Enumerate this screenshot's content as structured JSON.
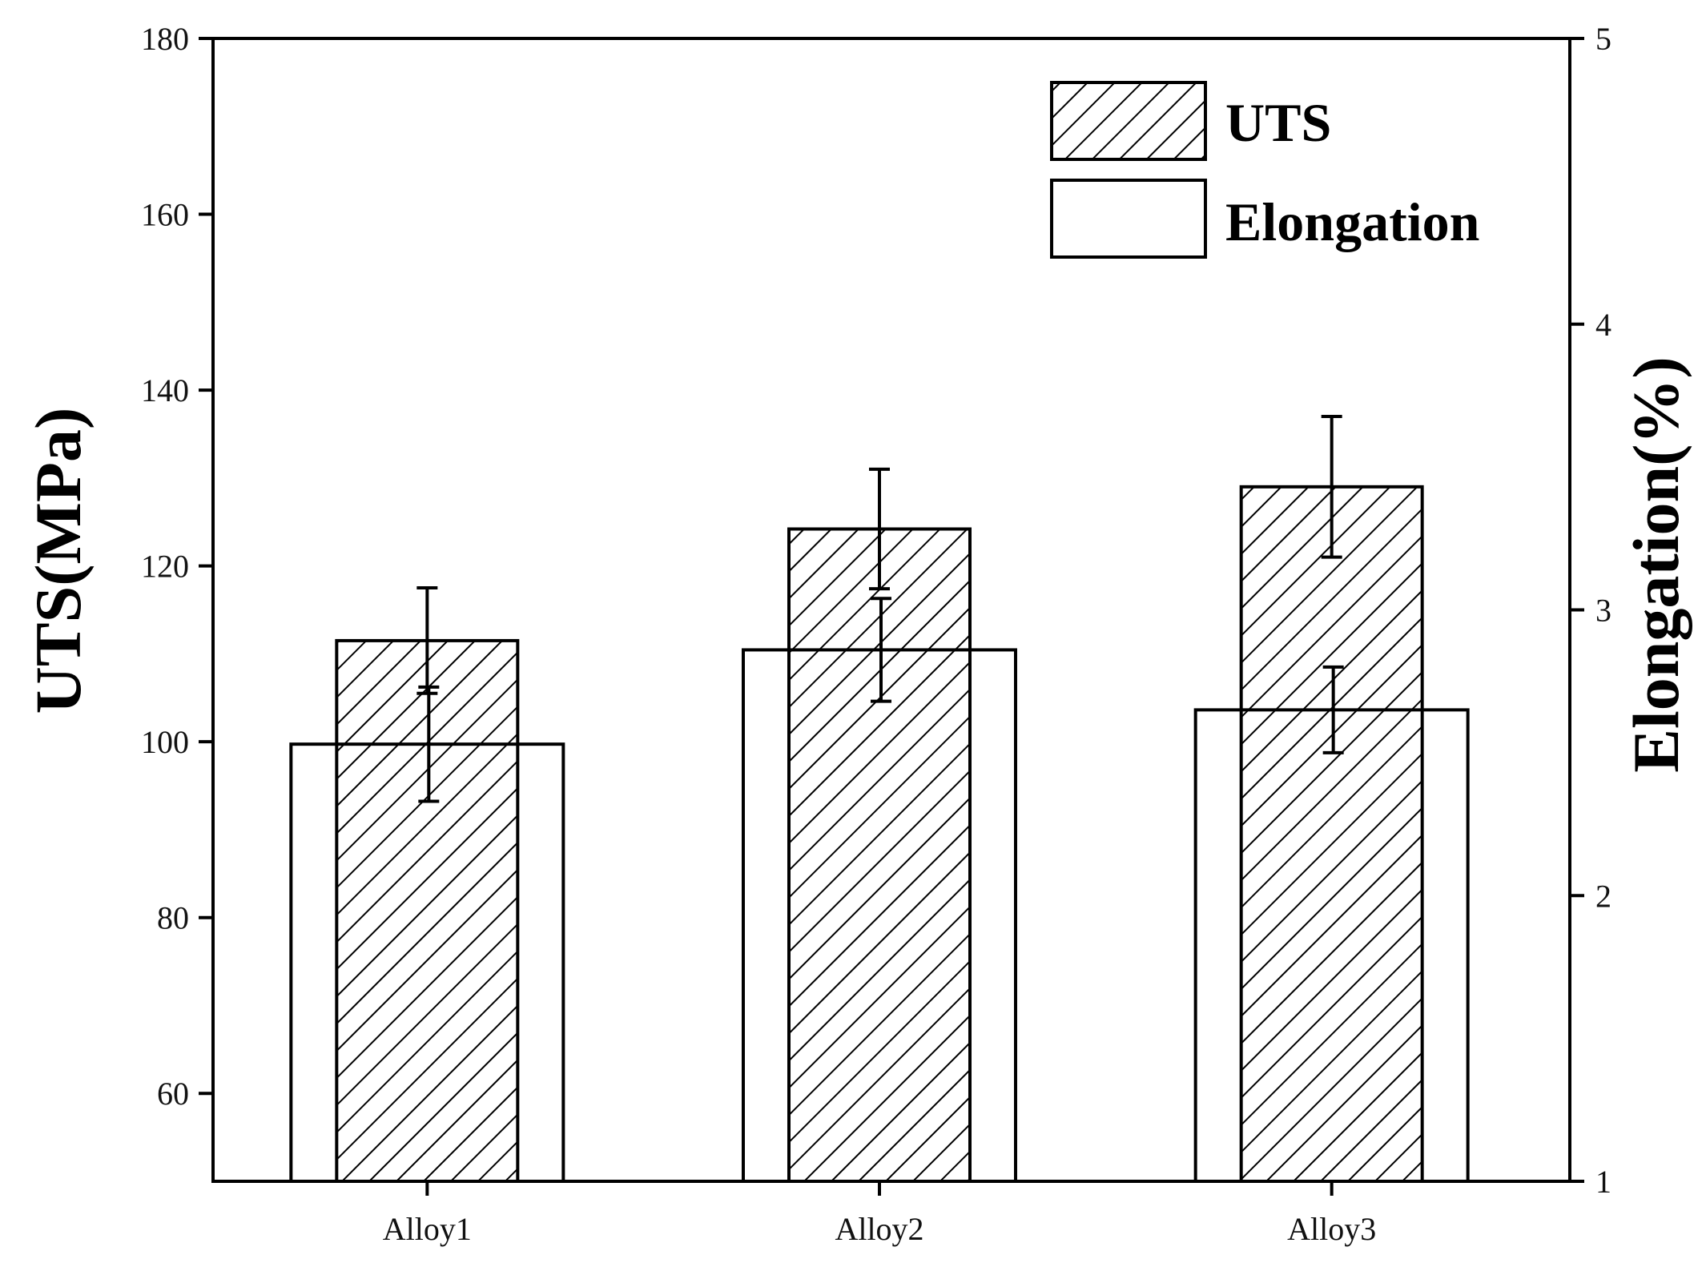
{
  "chart_data": {
    "type": "bar",
    "categories": [
      "Alloy1",
      "Alloy2",
      "Alloy3"
    ],
    "series": [
      {
        "name": "UTS",
        "axis": "left",
        "pattern": "diagonal-hatch",
        "values": [
          111.5,
          124.2,
          129.0
        ],
        "error": [
          6.0,
          6.8,
          8.0
        ]
      },
      {
        "name": "Elongation",
        "axis": "right",
        "pattern": "none",
        "values": [
          2.53,
          2.86,
          2.65
        ],
        "error": [
          0.2,
          0.18,
          0.15
        ]
      }
    ],
    "ylabel": "UTS(MPa)",
    "ylabel_right": "Elongation(%)",
    "xlabel": "",
    "ylim": [
      50,
      180
    ],
    "ylim_right": [
      1,
      5
    ],
    "yticks": [
      60,
      80,
      100,
      120,
      140,
      160,
      180
    ],
    "yticks_right": [
      1,
      2,
      3,
      4,
      5
    ],
    "legend": [
      "UTS",
      "Elongation"
    ],
    "legend_position": "top-right",
    "grid": false,
    "colors": {
      "fill_open": "#ffffff",
      "hatch": "#000000",
      "stroke": "#000000"
    }
  }
}
